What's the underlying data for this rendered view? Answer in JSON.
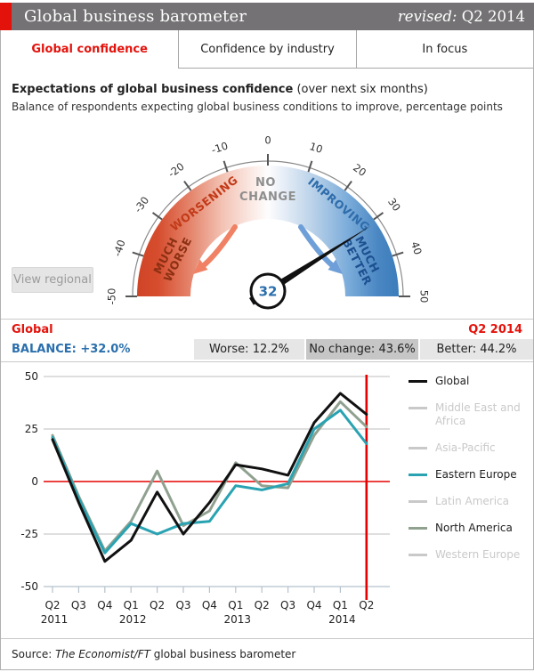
{
  "header": {
    "title": "Global business barometer",
    "revised_label": "revised:",
    "revised_value": "Q2 2014",
    "accent_color": "#e3120b",
    "bar_color": "#747274"
  },
  "tabs": [
    {
      "label": "Global confidence",
      "active": true
    },
    {
      "label": "Confidence by industry",
      "active": false
    },
    {
      "label": "In focus",
      "active": false
    }
  ],
  "description": {
    "heading_bold": "Expectations of global business confidence",
    "heading_normal": " (over next six months)",
    "subtext": "Balance of respondents expecting global business conditions to improve, percentage points"
  },
  "gauge": {
    "value": 32,
    "needle_value_label": "32",
    "min": -50,
    "max": 50,
    "tick_labels": [
      -50,
      -40,
      -30,
      -20,
      -10,
      0,
      10,
      20,
      30,
      40,
      50
    ],
    "zone_labels": {
      "much_worse": [
        "MUCH",
        "WORSE"
      ],
      "worsening": "WORSENING",
      "no_change": [
        "NO",
        "CHANGE"
      ],
      "improving": "IMPROVING",
      "much_better": [
        "MUCH",
        "BETTER"
      ]
    },
    "colors": {
      "red_deep": "#d04426",
      "blue_deep": "#3b7cba",
      "much_worse_text": "#8c2f12",
      "worsening_text": "#c23a18",
      "no_change_text": "#8e8e8e",
      "improving_text": "#2e6cab",
      "much_better_text": "#1c4f8f",
      "red_arrow": "#f08164",
      "blue_arrow": "#6f9fd8"
    },
    "view_regional_label": "View regional"
  },
  "stats": {
    "region_label": "Global",
    "period_label": "Q2 2014",
    "balance_label": "BALANCE:",
    "balance_value": "+32.0%",
    "balance_color": "#2a6fad",
    "worse_label": "Worse:",
    "worse_value": "12.2%",
    "no_change_label": "No change:",
    "no_change_value": "43.6%",
    "no_change_highlighted": true,
    "better_label": "Better:",
    "better_value": "44.2%"
  },
  "chart_data": {
    "type": "line",
    "categories": [
      "Q2 2011",
      "Q3 2011",
      "Q4 2011",
      "Q1 2012",
      "Q2 2012",
      "Q3 2012",
      "Q4 2012",
      "Q1 2013",
      "Q2 2013",
      "Q3 2013",
      "Q4 2013",
      "Q1 2014",
      "Q2 2014"
    ],
    "x_tick_labels": [
      "Q2",
      "Q3",
      "Q4",
      "Q1",
      "Q2",
      "Q3",
      "Q4",
      "Q1",
      "Q2",
      "Q3",
      "Q4",
      "Q1",
      "Q2"
    ],
    "year_labels": [
      {
        "index": 0,
        "label": "2011"
      },
      {
        "index": 3,
        "label": "2012"
      },
      {
        "index": 7,
        "label": "2013"
      },
      {
        "index": 11,
        "label": "2014"
      }
    ],
    "ylim": [
      -50,
      50
    ],
    "yticks": [
      50,
      25,
      0,
      -25,
      -50
    ],
    "zero_line_color": "#e60000",
    "grid_color": "#c9c9c9",
    "axis_color": "#b5c2cc",
    "current_marker": {
      "index": 12,
      "color": "#e60000"
    },
    "inactive_color": "#c9c9c9",
    "legend_position": "right",
    "series": [
      {
        "name": "Global",
        "color": "#111111",
        "active": true,
        "values": [
          20,
          -10,
          -38,
          -28,
          -5,
          -25,
          -10,
          8,
          6,
          3,
          28,
          42,
          32
        ]
      },
      {
        "name": "Middle East and Africa",
        "active": false
      },
      {
        "name": "Asia-Pacific",
        "active": false
      },
      {
        "name": "Eastern Europe",
        "color": "#29a3b2",
        "active": true,
        "values": [
          21,
          -8,
          -34,
          -20,
          -25,
          -20,
          -19,
          -2,
          -4,
          -1,
          25,
          34,
          18
        ]
      },
      {
        "name": "Latin America",
        "active": false
      },
      {
        "name": "North America",
        "color": "#90a190",
        "active": true,
        "values": [
          22,
          -7,
          -33,
          -19,
          5,
          -21,
          -14,
          9,
          -2,
          -3,
          22,
          38,
          26
        ]
      },
      {
        "name": "Western Europe",
        "active": false
      }
    ]
  },
  "footer": {
    "prefix": "Source: ",
    "source_italic": "The Economist/FT",
    "suffix": " global business barometer"
  }
}
